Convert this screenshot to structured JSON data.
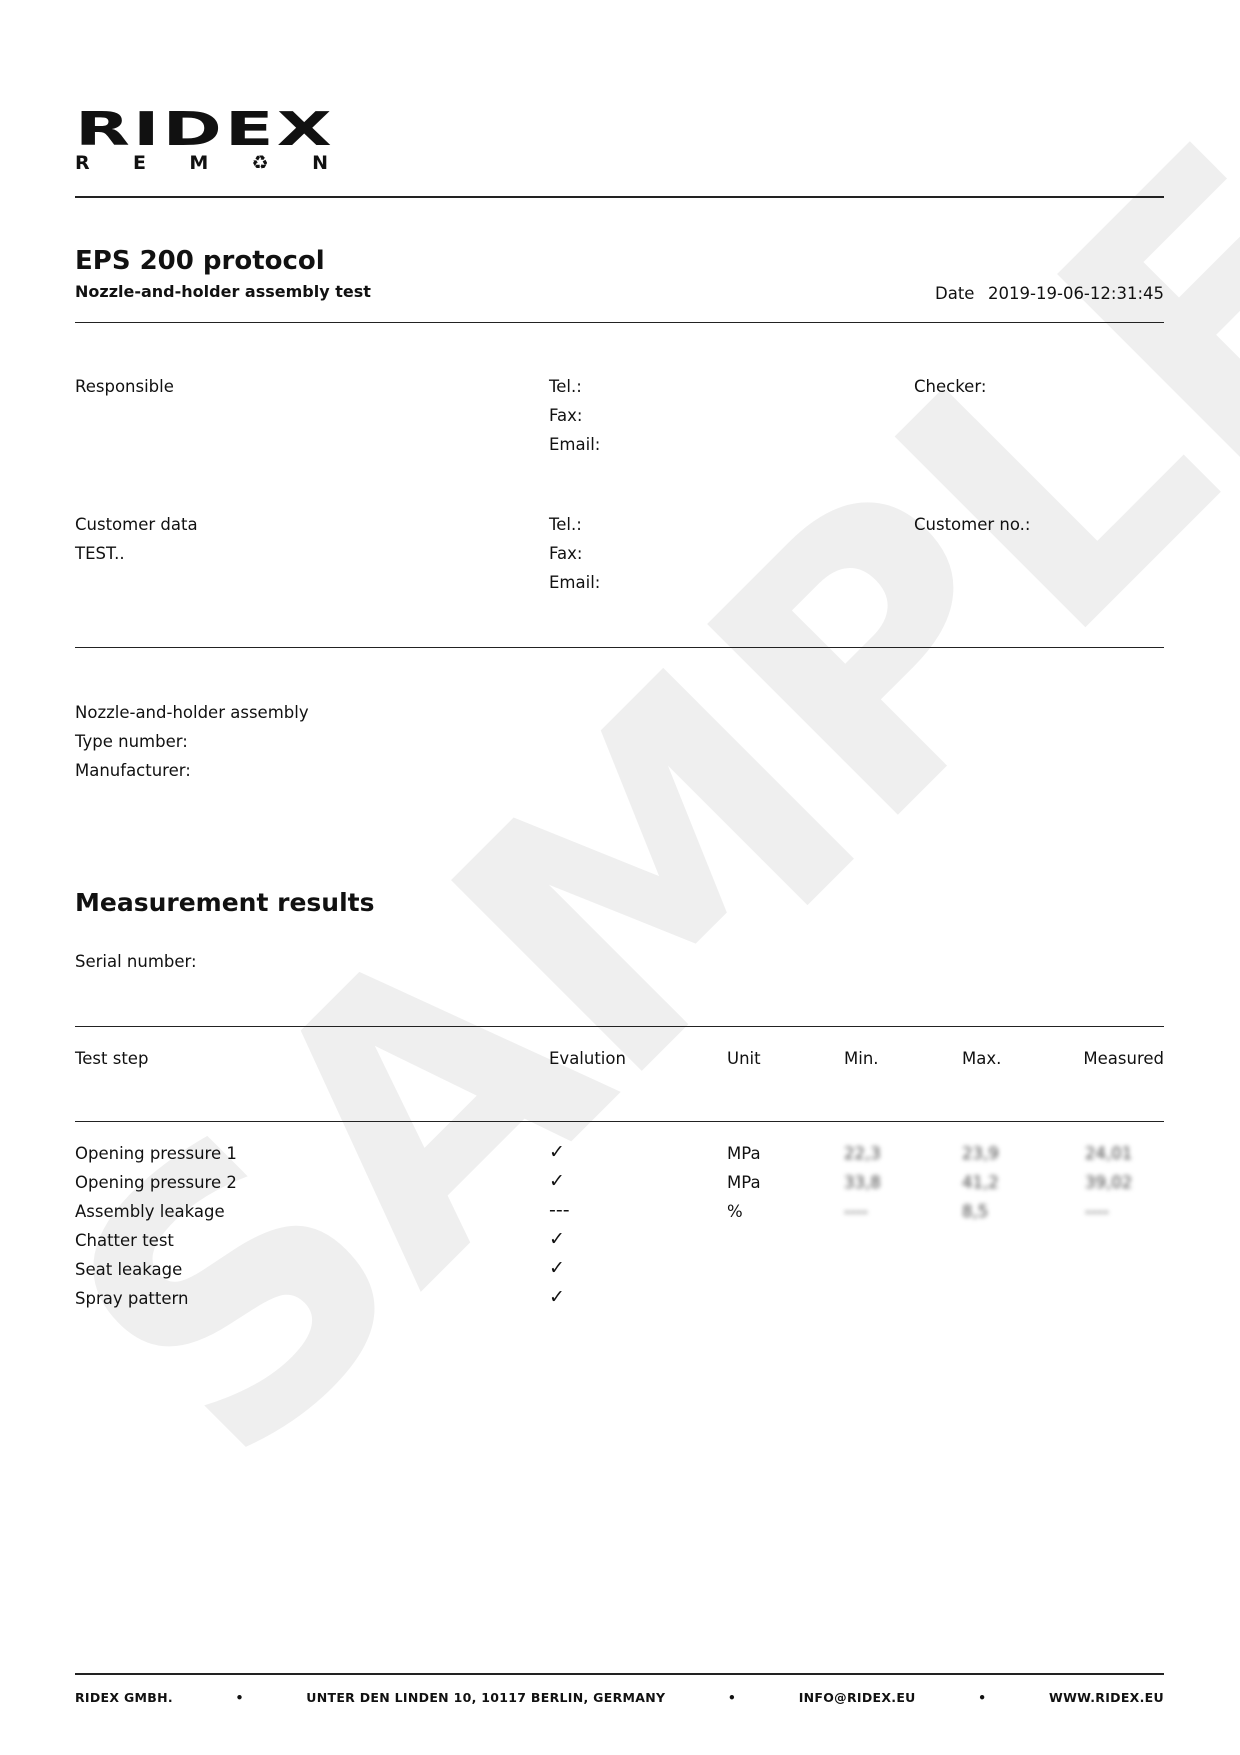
{
  "logo": {
    "main": "RIDEX",
    "sub": [
      "R",
      "E",
      "M",
      "♻",
      "N"
    ]
  },
  "watermark": "SAMPLE",
  "header": {
    "title": "EPS 200 protocol",
    "subtitle": "Nozzle-and-holder assembly test",
    "date_label": "Date",
    "date_value": "2019-19-06-12:31:45"
  },
  "responsible": {
    "label": "Responsible",
    "tel": "Tel.:",
    "fax": "Fax:",
    "email": "Email:",
    "checker": "Checker:"
  },
  "customer": {
    "label": "Customer data",
    "value": "TEST..",
    "tel": "Tel.:",
    "fax": "Fax:",
    "email": "Email:",
    "customer_no": "Customer no.:"
  },
  "assembly": {
    "name": "Nozzle-and-holder assembly",
    "type_number": "Type number:",
    "manufacturer": "Manufacturer:"
  },
  "results": {
    "title": "Measurement results",
    "serial": "Serial number:",
    "columns": [
      "Test step",
      "Evalution",
      "Unit",
      "Min.",
      "Max.",
      "Measured"
    ],
    "rows": [
      {
        "step": "Opening pressure 1",
        "eval": "✓",
        "unit": "MPa",
        "min": "22,3",
        "max": "23,9",
        "measured": "24,01"
      },
      {
        "step": "Opening pressure 2",
        "eval": "✓",
        "unit": "MPa",
        "min": "33,8",
        "max": "41,2",
        "measured": "39,02"
      },
      {
        "step": "Assembly leakage",
        "eval": "---",
        "unit": "%",
        "min": "----",
        "max": "8,5",
        "measured": "----"
      },
      {
        "step": "Chatter test",
        "eval": "✓",
        "unit": "",
        "min": "",
        "max": "",
        "measured": ""
      },
      {
        "step": "Seat leakage",
        "eval": "✓",
        "unit": "",
        "min": "",
        "max": "",
        "measured": ""
      },
      {
        "step": "Spray pattern",
        "eval": "✓",
        "unit": "",
        "min": "",
        "max": "",
        "measured": ""
      }
    ]
  },
  "footer": [
    "RIDEX GMBH.",
    "•",
    "UNTER DEN LINDEN 10, 10117 BERLIN, GERMANY",
    "•",
    "INFO@RIDEX.EU",
    "•",
    "WWW.RIDEX.EU"
  ]
}
